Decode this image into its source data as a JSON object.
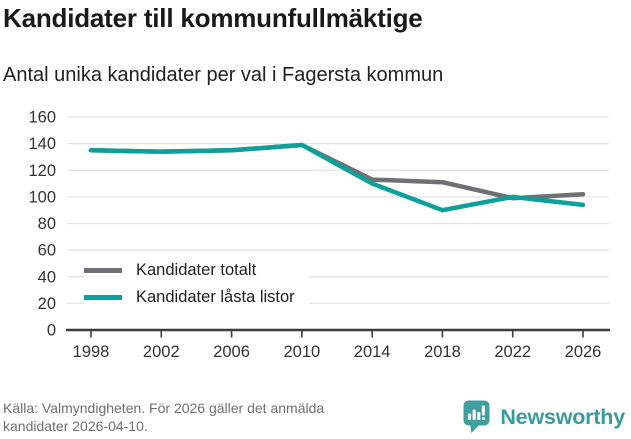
{
  "chart_data": {
    "type": "line",
    "title": "Kandidater till kommunfullmäktige",
    "subtitle": "Antal unika kandidater per val i Fagersta kommun",
    "x": [
      1998,
      2002,
      2006,
      2010,
      2014,
      2018,
      2022,
      2026
    ],
    "series": [
      {
        "name": "Kandidater totalt",
        "color": "#6f7073",
        "values": [
          135,
          134,
          135,
          139,
          113,
          111,
          99,
          102
        ]
      },
      {
        "name": "Kandidater låsta listor",
        "color": "#0ba19a",
        "values": [
          135,
          134,
          135,
          139,
          110,
          90,
          100,
          94
        ]
      }
    ],
    "ylim": [
      0,
      160
    ],
    "yticks": [
      0,
      20,
      40,
      60,
      80,
      100,
      120,
      140,
      160
    ],
    "grid": true,
    "legend_position": "inside-bottom-left"
  },
  "footer": {
    "source_lines": [
      "Källa: Valmyndigheten. För 2026 gäller det anmälda",
      "kandidater 2026-04-10."
    ],
    "brand_name": "Newsworthy"
  },
  "appearance": {
    "brand_color": "#3f9f9f",
    "grid_color": "#e3e3e3",
    "axis_color": "#3d3d3d",
    "title_color": "#191919",
    "muted_text_color": "#6e7072"
  }
}
